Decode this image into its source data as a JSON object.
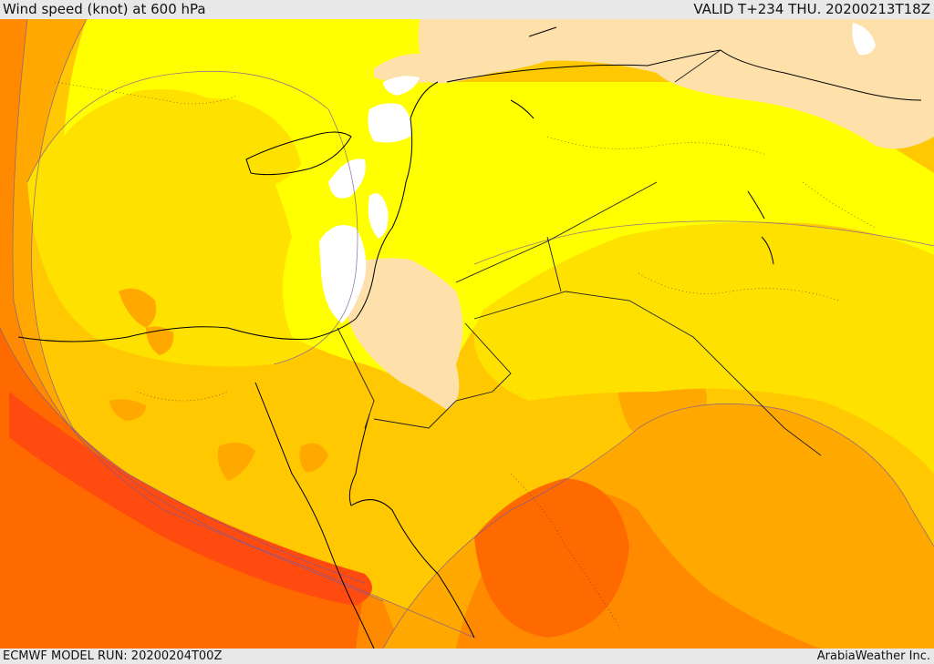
{
  "header": {
    "title": "Wind speed (knot) at 600 hPa",
    "valid": "VALID T+234 THU. 20200213T18Z"
  },
  "footer": {
    "model_run": "ECMWF MODEL RUN: 20200204T00Z",
    "credit": "ArabiaWeather Inc."
  },
  "colors": {
    "calm": "#ffffff",
    "light": "#fde0aa",
    "yellow": "#ffff00",
    "gold": "#ffe100",
    "amber": "#ffc800",
    "orange": "#ffa800",
    "dark_orange": "#ff8a00",
    "red_orange": "#ff6a00",
    "red": "#ff4a10"
  }
}
